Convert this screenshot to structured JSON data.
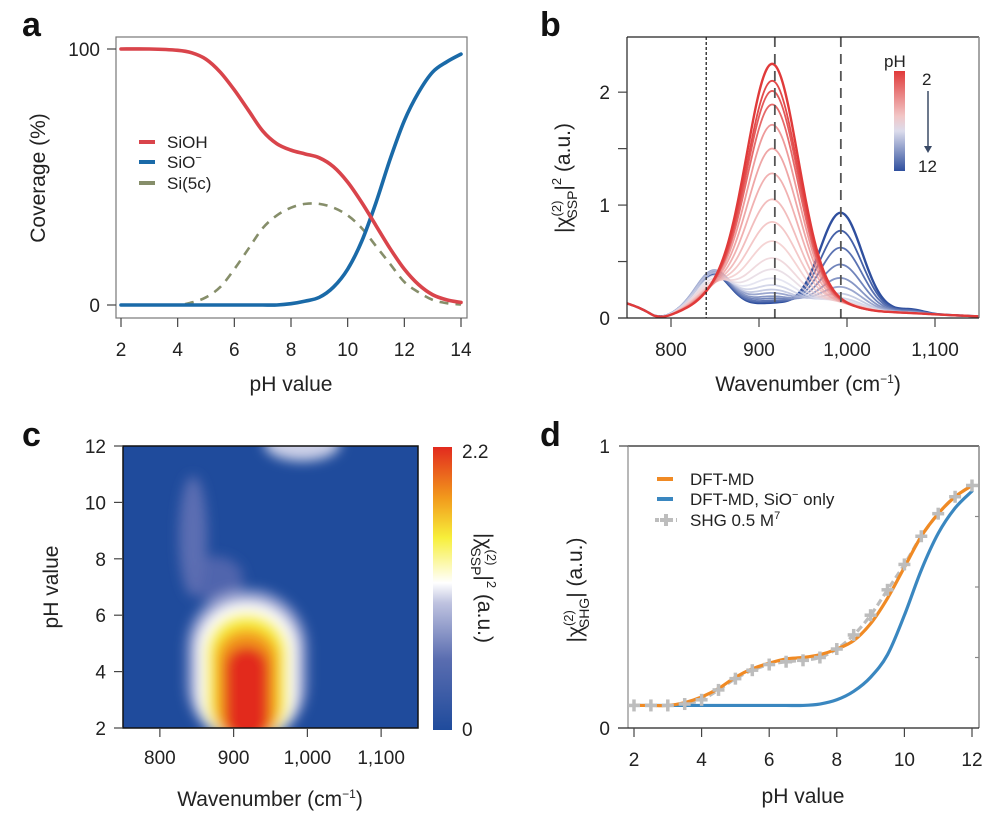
{
  "figure": {
    "panels": [
      "a",
      "b",
      "c",
      "d"
    ]
  },
  "chart_data": [
    {
      "panel": "a",
      "type": "line",
      "title": "",
      "xlabel": "pH value",
      "ylabel": "Coverage (%)",
      "xlim": [
        2,
        14
      ],
      "ylim": [
        0,
        100
      ],
      "xticks": [
        2,
        4,
        6,
        8,
        10,
        12,
        14
      ],
      "yticks": [
        0,
        100
      ],
      "ytick_labels": [
        "0",
        "100"
      ],
      "legend_position": "center-left",
      "x": [
        2,
        3,
        4,
        4.5,
        5,
        5.5,
        6,
        6.5,
        7,
        7.5,
        8,
        8.5,
        9,
        9.5,
        10,
        10.5,
        11,
        11.5,
        12,
        12.5,
        13,
        13.5,
        14
      ],
      "series": [
        {
          "name": "SiOH",
          "label": "SiOH",
          "color": "#d9444b",
          "style": "solid",
          "values": [
            100,
            100,
            99.5,
            98.5,
            96,
            91,
            84,
            76,
            68,
            63,
            60.5,
            59,
            57.5,
            54,
            48,
            40,
            31,
            22,
            14,
            8,
            4,
            2,
            1
          ]
        },
        {
          "name": "SiO-",
          "label": "SiO",
          "label_sup": "−",
          "color": "#1a6aa8",
          "style": "solid",
          "values": [
            0,
            0,
            0,
            0,
            0,
            0,
            0,
            0,
            0,
            0,
            0.5,
            1.5,
            3,
            7,
            14,
            25,
            40,
            57,
            72,
            83,
            91,
            95,
            98
          ]
        },
        {
          "name": "Si(5c)",
          "label": "Si(5c)",
          "color": "#868e6a",
          "style": "dashed",
          "values": [
            0,
            0,
            0,
            1,
            3,
            7,
            14,
            22,
            30,
            35,
            38,
            39.5,
            39.5,
            38,
            35,
            30,
            23,
            16,
            9,
            5,
            2,
            0.7,
            0.2
          ]
        }
      ]
    },
    {
      "panel": "b",
      "type": "line",
      "title": "",
      "xlabel": "Wavenumber (cm",
      "xlabel_sup": "−1",
      "xlabel_end": ")",
      "ylabel_prefix": "|χ",
      "ylabel_sup": "(2)",
      "ylabel_sub": "SSP",
      "ylabel_suffix": "|",
      "ylabel_sup2": "2",
      "ylabel_units": " (a.u.)",
      "xlim": [
        750,
        1150
      ],
      "ylim": [
        0,
        2.4
      ],
      "xticks": [
        800,
        900,
        1000,
        1100
      ],
      "xtick_labels": [
        "800",
        "900",
        "1,000",
        "1,100"
      ],
      "yticks": [
        0,
        0.5,
        1,
        1.5,
        2
      ],
      "ytick_labels": [
        "0",
        "",
        "1",
        "",
        "2"
      ],
      "reference_lines": [
        {
          "x": 840,
          "style": "dotted"
        },
        {
          "x": 918,
          "style": "dashed"
        },
        {
          "x": 993,
          "style": "dashed"
        }
      ],
      "colorbar": {
        "title": "pH",
        "min_label": "2",
        "max_label": "12",
        "colors": [
          "#e03a3a",
          "#f2c6c6",
          "#dcdcec",
          "#2f4f9e"
        ],
        "position": "top-right"
      },
      "pH_values": [
        2,
        2.5,
        3,
        3.5,
        4,
        4.5,
        5,
        5.5,
        6,
        6.5,
        7,
        7.5,
        8,
        8.5,
        9,
        9.5,
        10,
        10.5,
        11,
        11.5,
        12
      ],
      "peak_900_heights": [
        2.2,
        2.05,
        1.96,
        1.84,
        1.66,
        1.45,
        1.23,
        1.0,
        0.8,
        0.63,
        0.48,
        0.38,
        0.3,
        0.24,
        0.2,
        0.17,
        0.14,
        0.12,
        0.1,
        0.09,
        0.08
      ],
      "peak_850_heights": [
        0.1,
        0.1,
        0.11,
        0.12,
        0.13,
        0.14,
        0.15,
        0.17,
        0.19,
        0.21,
        0.24,
        0.27,
        0.3,
        0.33,
        0.35,
        0.36,
        0.36,
        0.35,
        0.34,
        0.33,
        0.33
      ],
      "peak_990_heights": [
        0.05,
        0.05,
        0.05,
        0.05,
        0.05,
        0.06,
        0.06,
        0.06,
        0.07,
        0.07,
        0.08,
        0.09,
        0.1,
        0.12,
        0.16,
        0.22,
        0.3,
        0.42,
        0.57,
        0.72,
        0.88
      ]
    },
    {
      "panel": "c",
      "type": "heatmap",
      "title": "",
      "xlabel": "Wavenumber (cm",
      "xlabel_sup": "−1",
      "xlabel_end": ")",
      "ylabel": "pH value",
      "xlim": [
        750,
        1150
      ],
      "ylim": [
        2,
        12
      ],
      "xticks": [
        800,
        900,
        1000,
        1100
      ],
      "xtick_labels": [
        "800",
        "900",
        "1,000",
        "1,100"
      ],
      "yticks": [
        2,
        4,
        6,
        8,
        10,
        12
      ],
      "colorbar": {
        "min": 0,
        "max": 2.2,
        "min_label": "0",
        "max_label": "2.2",
        "label_prefix": "|χ",
        "label_sup": "(2)",
        "label_sub": "SSP",
        "label_suffix": "|",
        "label_sup2": "2",
        "label_units": " (a.u.)",
        "colors": [
          "#1f4b9c",
          "#5a6db0",
          "#bfc3e0",
          "#ffffff",
          "#f7ef3a",
          "#f29a1c",
          "#e22a1e"
        ]
      },
      "features": [
        {
          "description": "main band",
          "center_wavenumber": 918,
          "pH_range": [
            2,
            6
          ],
          "max_value": 2.2
        },
        {
          "description": "shoulder",
          "center_wavenumber": 845,
          "pH_range": [
            6,
            11
          ],
          "max_value": 0.35
        },
        {
          "description": "high-pH band",
          "center_wavenumber": 993,
          "pH_range": [
            11,
            12
          ],
          "max_value": 0.88
        }
      ]
    },
    {
      "panel": "d",
      "type": "line",
      "title": "",
      "xlabel": "pH value",
      "ylabel_prefix": "|χ",
      "ylabel_sup": "(2)",
      "ylabel_sub": "SHG",
      "ylabel_suffix": "| (a.u.)",
      "xlim": [
        2,
        12
      ],
      "ylim": [
        0,
        1
      ],
      "xticks": [
        2,
        4,
        6,
        8,
        10,
        12
      ],
      "yticks": [
        0,
        1
      ],
      "legend_position": "top-left",
      "x": [
        2,
        2.5,
        3,
        3.5,
        4,
        4.5,
        5,
        5.5,
        6,
        6.5,
        7,
        7.5,
        8,
        8.5,
        9,
        9.5,
        10,
        10.5,
        11,
        11.5,
        12
      ],
      "series": [
        {
          "name": "DFT-MD",
          "label": "DFT-MD",
          "color": "#f08a24",
          "style": "solid",
          "values": [
            0.08,
            0.08,
            0.08,
            0.09,
            0.11,
            0.14,
            0.18,
            0.21,
            0.23,
            0.245,
            0.25,
            0.26,
            0.28,
            0.31,
            0.37,
            0.46,
            0.57,
            0.68,
            0.76,
            0.82,
            0.86
          ]
        },
        {
          "name": "DFT-MD, SiO- only",
          "label": "DFT-MD, SiO",
          "label_sup": "−",
          "label_end": " only",
          "color": "#3a87c0",
          "style": "solid",
          "values": [
            0.08,
            0.08,
            0.08,
            0.08,
            0.08,
            0.08,
            0.08,
            0.08,
            0.08,
            0.08,
            0.08,
            0.085,
            0.1,
            0.13,
            0.18,
            0.26,
            0.4,
            0.56,
            0.69,
            0.78,
            0.84
          ]
        },
        {
          "name": "SHG 0.5 M",
          "label": "SHG 0.5 M",
          "label_sup": "7",
          "color": "#bdbdbd",
          "style": "dashed-cross",
          "values": [
            0.08,
            0.08,
            0.08,
            0.085,
            0.1,
            0.135,
            0.175,
            0.205,
            0.225,
            0.235,
            0.24,
            0.25,
            0.28,
            0.33,
            0.4,
            0.49,
            0.58,
            0.68,
            0.76,
            0.82,
            0.86
          ]
        }
      ]
    }
  ]
}
